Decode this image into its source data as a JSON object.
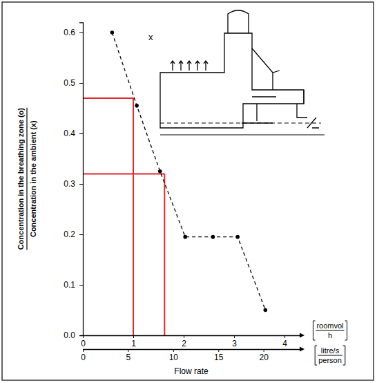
{
  "chart_data": {
    "type": "line",
    "xlabel": "Flow rate",
    "x_unit": [
      "roomvol",
      "h"
    ],
    "x2_unit": [
      "litre/s",
      "person"
    ],
    "ylabel": [
      "Concentration in the breathing zone (o)",
      "Concentration in the ambient (x)"
    ],
    "annotations": [
      "x"
    ],
    "x": [
      0.58,
      1.07,
      1.53,
      2.03,
      2.58,
      3.07,
      3.62
    ],
    "series": [
      {
        "color": "#000000",
        "marker": "circle",
        "line_style": "dashed",
        "values": [
          0.6,
          0.455,
          0.325,
          0.195,
          0.195,
          0.195,
          0.05
        ]
      }
    ],
    "reference_lines": {
      "color": "#e0282e",
      "x": [
        1.0,
        1.62
      ],
      "y": [
        0.47,
        0.32
      ]
    },
    "xlim": [
      0,
      4.3
    ],
    "xticks": [
      0,
      1,
      2,
      3,
      4
    ],
    "x2lim": [
      0,
      24
    ],
    "x2ticks": [
      0,
      5,
      10,
      15,
      20
    ],
    "ylim": [
      0,
      0.62
    ],
    "yticks": [
      {
        "value": 0,
        "label": "0.0"
      },
      0.1,
      0.2,
      0.3,
      0.4,
      0.5,
      0.6
    ],
    "grid": false
  }
}
